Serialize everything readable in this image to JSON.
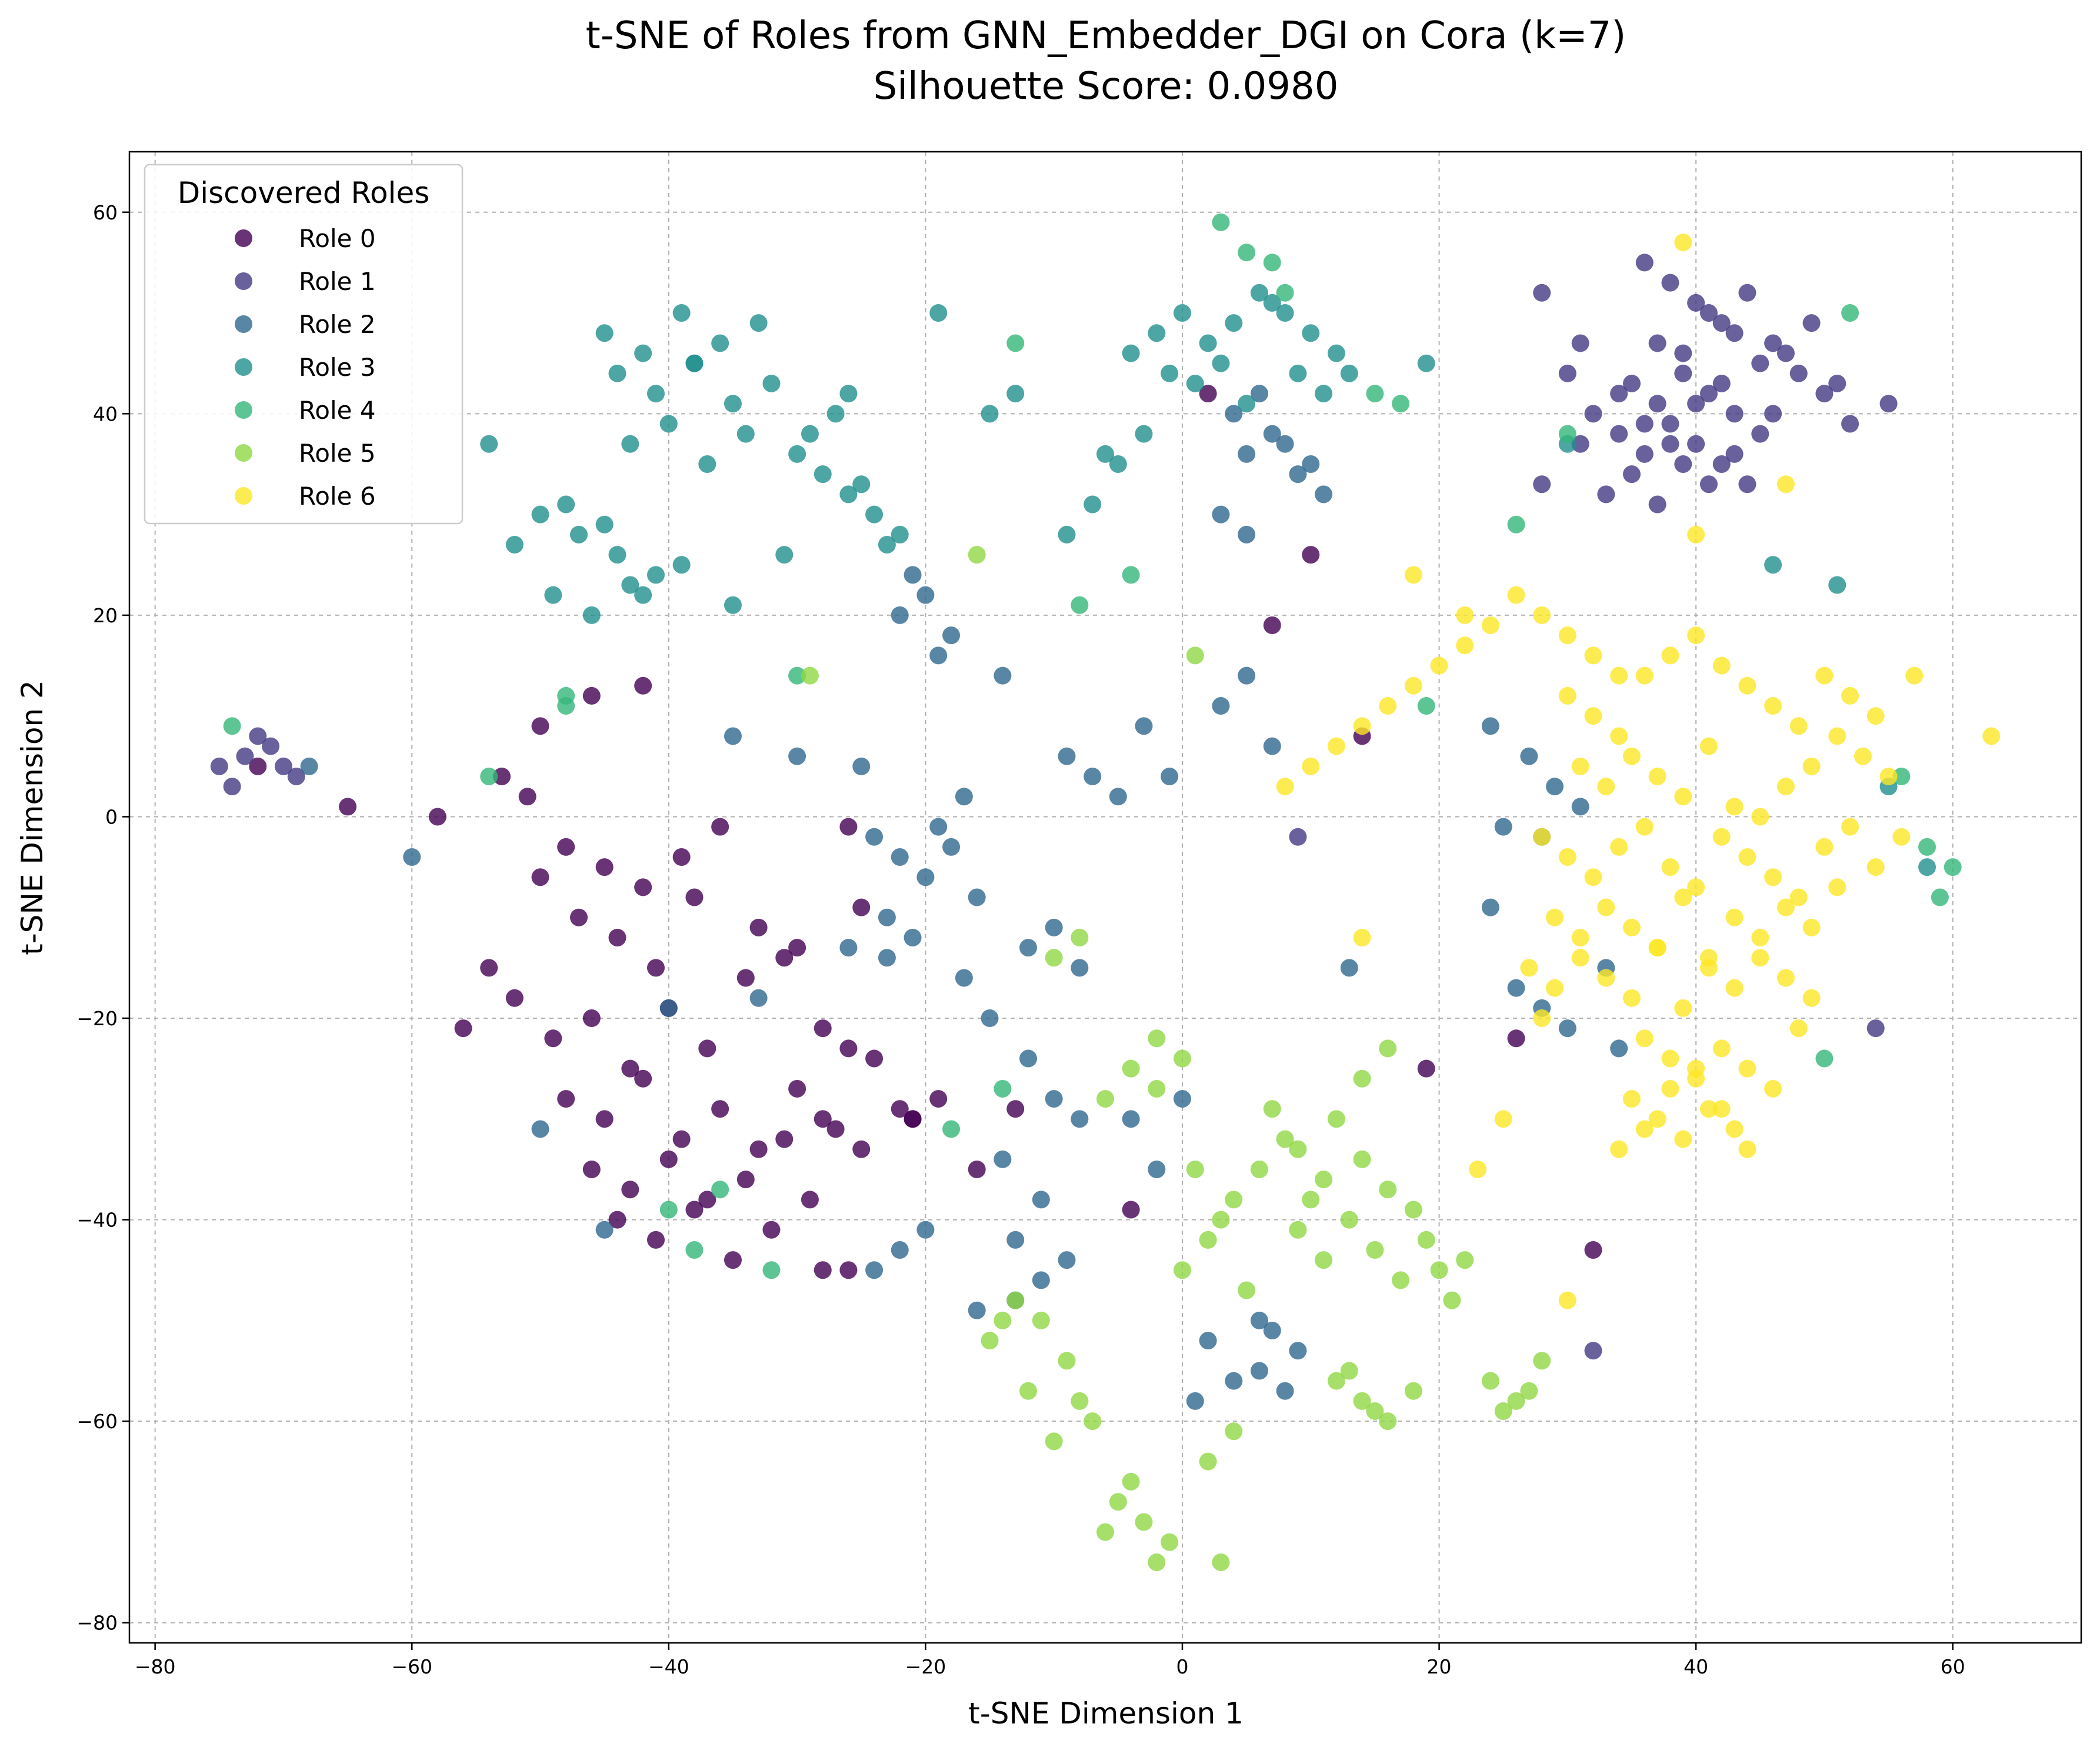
{
  "chart_data": {
    "type": "scatter",
    "title": "t-SNE of Roles from GNN_Embedder_DGI on Cora (k=7)",
    "subtitle": "Silhouette Score: 0.0980",
    "xlabel": "t-SNE Dimension 1",
    "ylabel": "t-SNE Dimension 2",
    "xlim": [
      -82,
      70
    ],
    "ylim": [
      -82,
      66
    ],
    "xticks": [
      -80,
      -60,
      -40,
      -20,
      0,
      20,
      40,
      60
    ],
    "yticks": [
      -80,
      -60,
      -40,
      -20,
      0,
      20,
      40,
      60
    ],
    "xtick_labels": [
      "−80",
      "−60",
      "−40",
      "−20",
      "0",
      "20",
      "40",
      "60"
    ],
    "ytick_labels": [
      "−80",
      "−60",
      "−40",
      "−20",
      "0",
      "20",
      "40",
      "60"
    ],
    "grid": true,
    "legend": {
      "title": "Discovered Roles",
      "placement": "top-left"
    },
    "series": [
      {
        "name": "Role 0",
        "color": "#440154",
        "x": [
          -50,
          -47,
          -44,
          -41,
          -38,
          -52,
          -49,
          -46,
          -43,
          -40,
          -37,
          -34,
          -31,
          -28,
          -25,
          -48,
          -45,
          -42,
          -39,
          -36,
          -33,
          -30,
          -27,
          -24,
          -21,
          -46,
          -43,
          -40,
          -37,
          -34,
          -31,
          -28,
          -25,
          -22,
          -19,
          -44,
          -41,
          -38,
          -35,
          -32,
          -29,
          -26,
          -48,
          -45,
          -42,
          -39,
          -36,
          -33,
          -30,
          -53,
          -51,
          -56,
          -58,
          -65,
          -72,
          -54,
          -28,
          -21,
          -26,
          -50,
          -46,
          -42,
          -16,
          -13,
          2,
          10,
          14,
          19,
          7,
          32,
          26,
          -4,
          -26
        ],
        "y": [
          -6,
          -10,
          -12,
          -15,
          -8,
          -18,
          -22,
          -20,
          -25,
          -19,
          -23,
          -16,
          -14,
          -21,
          -9,
          -28,
          -30,
          -26,
          -32,
          -29,
          -33,
          -27,
          -31,
          -24,
          -30,
          -35,
          -37,
          -34,
          -38,
          -36,
          -32,
          -30,
          -33,
          -29,
          -28,
          -40,
          -42,
          -39,
          -44,
          -41,
          -38,
          -45,
          -3,
          -5,
          -7,
          -4,
          -1,
          -11,
          -13,
          4,
          2,
          -21,
          0,
          1,
          5,
          -15,
          -45,
          -30,
          -23,
          9,
          12,
          13,
          -35,
          -29,
          42,
          26,
          8,
          -25,
          19,
          -43,
          -22,
          -39,
          -1
        ]
      },
      {
        "name": "Role 1",
        "color": "#443983",
        "x": [
          -75,
          -73,
          -71,
          -69,
          -74,
          -72,
          -70,
          36,
          38,
          40,
          42,
          44,
          37,
          39,
          41,
          43,
          45,
          35,
          37,
          39,
          41,
          43,
          46,
          48,
          50,
          34,
          36,
          38,
          40,
          42,
          44,
          47,
          49,
          51,
          33,
          35,
          37,
          39,
          41,
          43,
          45,
          30,
          32,
          34,
          36,
          38,
          40,
          42,
          28,
          31,
          46,
          52,
          55,
          54,
          32,
          9,
          28,
          31
        ],
        "y": [
          5,
          6,
          7,
          4,
          3,
          8,
          5,
          55,
          53,
          51,
          49,
          52,
          47,
          46,
          50,
          48,
          45,
          43,
          41,
          44,
          42,
          40,
          47,
          44,
          42,
          38,
          36,
          39,
          37,
          35,
          33,
          46,
          49,
          43,
          32,
          34,
          31,
          35,
          33,
          36,
          38,
          44,
          40,
          42,
          39,
          37,
          41,
          43,
          52,
          47,
          40,
          39,
          41,
          -21,
          -53,
          -2,
          33,
          37
        ]
      },
      {
        "name": "Role 2",
        "color": "#31688e",
        "x": [
          -24,
          -22,
          -20,
          -18,
          -16,
          -23,
          -21,
          -19,
          -17,
          -25,
          -22,
          -20,
          -18,
          -21,
          -19,
          -23,
          -17,
          -15,
          -12,
          -10,
          -8,
          -14,
          -11,
          -13,
          5,
          7,
          9,
          11,
          4,
          6,
          8,
          10,
          3,
          5,
          7,
          9,
          6,
          8,
          -22,
          -20,
          -24,
          -26,
          -12,
          -10,
          -8,
          -5,
          -7,
          -9,
          -4,
          0,
          -2,
          2,
          4,
          1,
          3,
          5,
          7,
          -3,
          -1,
          27,
          29,
          31,
          25,
          28,
          30,
          33,
          26,
          24,
          28,
          -11,
          -9,
          -13,
          -60,
          -68,
          -50,
          -45,
          -40,
          -35,
          -30,
          -33,
          -14,
          -16,
          24,
          34,
          6,
          13
        ],
        "y": [
          -2,
          -4,
          -6,
          -3,
          -8,
          -10,
          -12,
          -1,
          2,
          5,
          20,
          22,
          18,
          24,
          16,
          -14,
          -16,
          -20,
          -24,
          -28,
          -30,
          -34,
          -38,
          -42,
          36,
          38,
          34,
          32,
          40,
          42,
          37,
          35,
          30,
          28,
          -51,
          -53,
          -55,
          -57,
          -43,
          -41,
          -45,
          -13,
          -13,
          -11,
          -15,
          2,
          4,
          6,
          -30,
          -28,
          -35,
          -52,
          -56,
          -58,
          11,
          14,
          7,
          9,
          4,
          6,
          3,
          1,
          -1,
          -19,
          -21,
          -15,
          -17,
          -9,
          -2,
          -46,
          -44,
          -48,
          -4,
          5,
          -31,
          -41,
          -19,
          8,
          6,
          -18,
          14,
          -49,
          9,
          -23,
          -50,
          -15
        ]
      },
      {
        "name": "Role 3",
        "color": "#21908d",
        "x": [
          -45,
          -42,
          -39,
          -36,
          -33,
          -44,
          -41,
          -38,
          -35,
          -32,
          -43,
          -40,
          -37,
          -34,
          -50,
          -47,
          -44,
          -41,
          -48,
          -45,
          -42,
          -39,
          -30,
          -28,
          -26,
          -24,
          -22,
          -29,
          -27,
          -25,
          -23,
          -31,
          -26,
          -4,
          -2,
          0,
          2,
          4,
          -1,
          1,
          3,
          5,
          7,
          6,
          8,
          10,
          12,
          9,
          11,
          -3,
          -5,
          -7,
          -9,
          -6,
          -52,
          -54,
          -49,
          -46,
          -43,
          46,
          55,
          58,
          -13,
          -15,
          -35,
          -38,
          -19,
          19,
          13,
          30,
          51
        ],
        "y": [
          48,
          46,
          50,
          47,
          49,
          44,
          42,
          45,
          41,
          43,
          37,
          39,
          35,
          38,
          30,
          28,
          26,
          24,
          31,
          29,
          22,
          25,
          36,
          34,
          32,
          30,
          28,
          38,
          40,
          33,
          27,
          26,
          42,
          46,
          48,
          50,
          47,
          49,
          44,
          43,
          45,
          41,
          51,
          52,
          50,
          48,
          46,
          44,
          42,
          38,
          35,
          31,
          28,
          36,
          27,
          37,
          22,
          20,
          23,
          25,
          3,
          -5,
          42,
          40,
          21,
          45,
          50,
          45,
          44,
          37,
          23
        ]
      },
      {
        "name": "Role 4",
        "color": "#35b779",
        "x": [
          -74,
          -54,
          -48,
          -40,
          -38,
          -36,
          -32,
          -30,
          -18,
          -14,
          -8,
          -4,
          3,
          5,
          7,
          15,
          17,
          19,
          26,
          30,
          56,
          58,
          60,
          50,
          52,
          59,
          -48,
          -13,
          8
        ],
        "y": [
          9,
          4,
          12,
          -39,
          -43,
          -37,
          -45,
          14,
          -31,
          -27,
          21,
          24,
          59,
          56,
          55,
          42,
          41,
          11,
          29,
          38,
          4,
          -3,
          -5,
          -24,
          50,
          -8,
          11,
          47,
          52
        ]
      },
      {
        "name": "Role 5",
        "color": "#90d743",
        "x": [
          -5,
          -3,
          -1,
          -4,
          -2,
          -6,
          -7,
          -8,
          -10,
          -12,
          -9,
          -11,
          0,
          2,
          4,
          1,
          3,
          5,
          -2,
          -4,
          -6,
          6,
          8,
          10,
          12,
          14,
          9,
          11,
          13,
          15,
          17,
          19,
          21,
          16,
          18,
          20,
          22,
          12,
          14,
          16,
          18,
          13,
          15,
          24,
          26,
          28,
          25,
          27,
          -14,
          -13,
          -15,
          -8,
          -10,
          7,
          9,
          11,
          4,
          2,
          14,
          16,
          0,
          -2,
          3,
          -29,
          -16,
          1
        ],
        "y": [
          -68,
          -70,
          -72,
          -66,
          -74,
          -71,
          -60,
          -58,
          -62,
          -57,
          -54,
          -50,
          -45,
          -42,
          -38,
          -35,
          -40,
          -47,
          -22,
          -25,
          -28,
          -35,
          -32,
          -38,
          -30,
          -34,
          -41,
          -44,
          -40,
          -43,
          -46,
          -42,
          -48,
          -37,
          -39,
          -45,
          -44,
          -56,
          -58,
          -60,
          -57,
          -55,
          -59,
          -56,
          -58,
          -54,
          -59,
          -57,
          -50,
          -48,
          -52,
          -12,
          -14,
          -29,
          -33,
          -36,
          -61,
          -64,
          -26,
          -23,
          -24,
          -27,
          -74,
          14,
          26,
          16
        ]
      },
      {
        "name": "Role 6",
        "color": "#fde725",
        "x": [
          30,
          32,
          34,
          36,
          38,
          40,
          42,
          44,
          46,
          48,
          50,
          52,
          54,
          31,
          33,
          35,
          37,
          39,
          41,
          43,
          45,
          47,
          49,
          51,
          53,
          55,
          28,
          30,
          32,
          34,
          36,
          38,
          40,
          42,
          44,
          46,
          48,
          50,
          52,
          54,
          56,
          29,
          31,
          33,
          35,
          37,
          39,
          41,
          43,
          45,
          47,
          49,
          51,
          27,
          29,
          31,
          33,
          35,
          37,
          39,
          41,
          43,
          45,
          47,
          49,
          36,
          38,
          40,
          42,
          44,
          46,
          48,
          35,
          37,
          39,
          41,
          43,
          34,
          36,
          38,
          40,
          42,
          44,
          28,
          30,
          32,
          34,
          26,
          24,
          22,
          20,
          18,
          16,
          14,
          12,
          10,
          8,
          14,
          18,
          22,
          57,
          63,
          39,
          47,
          40,
          30,
          28,
          25,
          23
        ],
        "y": [
          12,
          10,
          8,
          14,
          16,
          18,
          15,
          13,
          11,
          9,
          14,
          12,
          10,
          5,
          3,
          6,
          4,
          2,
          7,
          1,
          0,
          3,
          5,
          8,
          6,
          4,
          -2,
          -4,
          -6,
          -3,
          -1,
          -5,
          -7,
          -2,
          -4,
          -6,
          -8,
          -3,
          -1,
          -5,
          -2,
          -10,
          -12,
          -9,
          -11,
          -13,
          -8,
          -14,
          -10,
          -12,
          -9,
          -11,
          -7,
          -15,
          -17,
          -14,
          -16,
          -18,
          -13,
          -19,
          -15,
          -17,
          -14,
          -16,
          -18,
          -22,
          -24,
          -26,
          -23,
          -25,
          -27,
          -21,
          -28,
          -30,
          -32,
          -29,
          -31,
          -33,
          -31,
          -27,
          -25,
          -29,
          -33,
          20,
          18,
          16,
          14,
          22,
          19,
          17,
          15,
          13,
          11,
          9,
          7,
          5,
          3,
          -12,
          24,
          20,
          14,
          8,
          57,
          33,
          28,
          -48,
          -20,
          -30,
          -35
        ]
      }
    ]
  }
}
